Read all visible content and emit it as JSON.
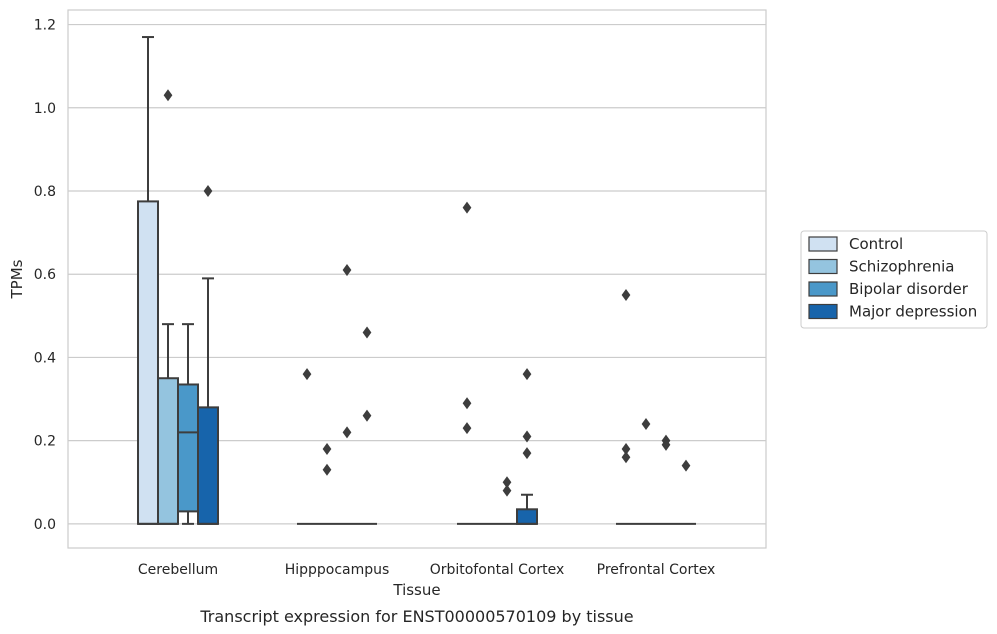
{
  "chart_data": {
    "type": "box",
    "xlabel": "Tissue",
    "ylabel": "TPMs",
    "caption": "Transcript expression for ENST00000570109 by tissue",
    "ylim": [
      -0.058,
      1.235
    ],
    "yticks": [
      "0.0",
      "0.2",
      "0.4",
      "0.6",
      "0.8",
      "1.0",
      "1.2"
    ],
    "grid": "horizontal",
    "legend_position": "right",
    "categories": [
      "Cerebellum",
      "Hipppocampus",
      "Orbitofontal Cortex",
      "Prefrontal Cortex"
    ],
    "series": [
      {
        "name": "Control",
        "color": "#d0e1f2",
        "boxes": [
          {
            "q1": 0.0,
            "median": 0.0,
            "q3": 0.775,
            "whisker_low": 0.0,
            "whisker_high": 1.17,
            "outliers": []
          },
          {
            "q1": 0.0,
            "median": 0.0,
            "q3": 0.0,
            "whisker_low": 0.0,
            "whisker_high": 0.0,
            "outliers": [
              0.36
            ]
          },
          {
            "q1": 0.0,
            "median": 0.0,
            "q3": 0.0,
            "whisker_low": 0.0,
            "whisker_high": 0.0,
            "outliers": [
              0.76,
              0.29,
              0.23
            ]
          },
          {
            "q1": 0.0,
            "median": 0.0,
            "q3": 0.0,
            "whisker_low": 0.0,
            "whisker_high": 0.0,
            "outliers": [
              0.55,
              0.18,
              0.16
            ]
          }
        ]
      },
      {
        "name": "Schizophrenia",
        "color": "#94c4df",
        "boxes": [
          {
            "q1": 0.0,
            "median": 0.0,
            "q3": 0.35,
            "whisker_low": 0.0,
            "whisker_high": 0.48,
            "outliers": [
              1.03
            ]
          },
          {
            "q1": 0.0,
            "median": 0.0,
            "q3": 0.0,
            "whisker_low": 0.0,
            "whisker_high": 0.0,
            "outliers": [
              0.18,
              0.13
            ]
          },
          {
            "q1": 0.0,
            "median": 0.0,
            "q3": 0.0,
            "whisker_low": 0.0,
            "whisker_high": 0.0,
            "outliers": []
          },
          {
            "q1": 0.0,
            "median": 0.0,
            "q3": 0.0,
            "whisker_low": 0.0,
            "whisker_high": 0.0,
            "outliers": [
              0.24
            ]
          }
        ]
      },
      {
        "name": "Bipolar disorder",
        "color": "#4a98c9",
        "boxes": [
          {
            "q1": 0.03,
            "median": 0.22,
            "q3": 0.335,
            "whisker_low": 0.0,
            "whisker_high": 0.48,
            "outliers": []
          },
          {
            "q1": 0.0,
            "median": 0.0,
            "q3": 0.0,
            "whisker_low": 0.0,
            "whisker_high": 0.0,
            "outliers": [
              0.61,
              0.22
            ]
          },
          {
            "q1": 0.0,
            "median": 0.0,
            "q3": 0.0,
            "whisker_low": 0.0,
            "whisker_high": 0.0,
            "outliers": [
              0.1,
              0.08
            ]
          },
          {
            "q1": 0.0,
            "median": 0.0,
            "q3": 0.0,
            "whisker_low": 0.0,
            "whisker_high": 0.0,
            "outliers": [
              0.2,
              0.19
            ]
          }
        ]
      },
      {
        "name": "Major depression",
        "color": "#1764ab",
        "boxes": [
          {
            "q1": 0.0,
            "median": 0.0,
            "q3": 0.28,
            "whisker_low": 0.0,
            "whisker_high": 0.59,
            "outliers": [
              0.8
            ]
          },
          {
            "q1": 0.0,
            "median": 0.0,
            "q3": 0.0,
            "whisker_low": 0.0,
            "whisker_high": 0.0,
            "outliers": [
              0.46,
              0.26
            ]
          },
          {
            "q1": 0.0,
            "median": 0.0,
            "q3": 0.035,
            "whisker_low": 0.0,
            "whisker_high": 0.07,
            "outliers": [
              0.36,
              0.21,
              0.17
            ]
          },
          {
            "q1": 0.0,
            "median": 0.0,
            "q3": 0.0,
            "whisker_low": 0.0,
            "whisker_high": 0.0,
            "outliers": [
              0.14
            ]
          }
        ]
      }
    ]
  },
  "colors": {
    "edge": "#3d3d3d",
    "grid": "#cccccc",
    "frame": "#cccccc",
    "text": "#262626"
  }
}
